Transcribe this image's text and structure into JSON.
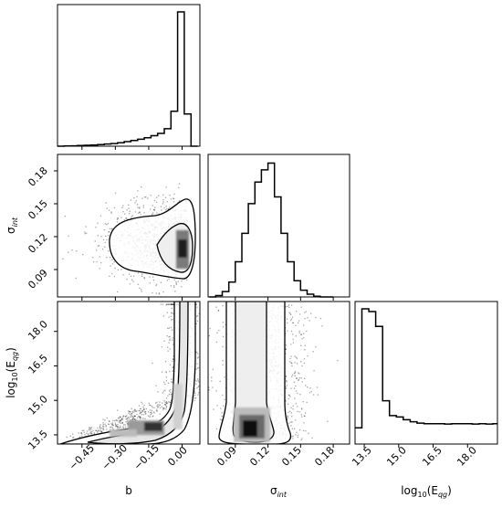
{
  "chart_data": {
    "type": "corner",
    "parameters": [
      {
        "name": "b",
        "label": "b",
        "range": [
          -0.56,
          0.08
        ],
        "ticks": [
          -0.45,
          -0.3,
          -0.15,
          0.0
        ],
        "tick_labels": [
          "−0.45",
          "−0.30",
          "−0.15",
          "0.00"
        ]
      },
      {
        "name": "sigma_int",
        "label_main": "σ",
        "label_sub": "int",
        "range": [
          0.065,
          0.195
        ],
        "ticks": [
          0.09,
          0.12,
          0.15,
          0.18
        ],
        "tick_labels": [
          "0.09",
          "0.12",
          "0.15",
          "0.18"
        ]
      },
      {
        "name": "log10_Eqg",
        "label_main": "log",
        "label_sub": "10",
        "label_tail": "(E",
        "label_sub2": "qg",
        "label_end": ")",
        "range": [
          13.1,
          19.3
        ],
        "ticks": [
          13.5,
          15.0,
          16.5,
          18.0
        ],
        "tick_labels": [
          "13.5",
          "15.0",
          "16.5",
          "18.0"
        ]
      }
    ],
    "histograms": [
      {
        "param": "b",
        "edges": [
          -0.56,
          -0.53,
          -0.5,
          -0.47,
          -0.44,
          -0.41,
          -0.38,
          -0.35,
          -0.32,
          -0.29,
          -0.26,
          -0.23,
          -0.2,
          -0.17,
          -0.14,
          -0.11,
          -0.08,
          -0.05,
          -0.02,
          0.01,
          0.04,
          0.07
        ],
        "counts": [
          0.0,
          0.002,
          0.003,
          0.005,
          0.007,
          0.009,
          0.012,
          0.016,
          0.02,
          0.026,
          0.034,
          0.043,
          0.052,
          0.063,
          0.078,
          0.095,
          0.13,
          0.26,
          1.0,
          0.24,
          0.0
        ]
      },
      {
        "param": "sigma_int",
        "edges": [
          0.066,
          0.072,
          0.078,
          0.084,
          0.09,
          0.096,
          0.102,
          0.108,
          0.114,
          0.12,
          0.126,
          0.132,
          0.138,
          0.144,
          0.15,
          0.156,
          0.162,
          0.168,
          0.174,
          0.18
        ],
        "counts": [
          0.0,
          0.01,
          0.04,
          0.11,
          0.26,
          0.47,
          0.69,
          0.85,
          0.94,
          0.99,
          0.74,
          0.47,
          0.26,
          0.12,
          0.05,
          0.02,
          0.005,
          0.0,
          0.0
        ]
      },
      {
        "param": "log10_Eqg",
        "edges": [
          13.1,
          13.4,
          13.7,
          14.0,
          14.3,
          14.6,
          14.9,
          15.2,
          15.5,
          15.8,
          16.1,
          16.4,
          16.7,
          17.0,
          17.3,
          17.6,
          17.9,
          18.2,
          18.5,
          18.8,
          19.1,
          19.3
        ],
        "counts": [
          0.12,
          1.0,
          0.98,
          0.87,
          0.32,
          0.21,
          0.2,
          0.18,
          0.165,
          0.155,
          0.15,
          0.15,
          0.15,
          0.148,
          0.15,
          0.15,
          0.15,
          0.148,
          0.15,
          0.148,
          0.15
        ]
      }
    ],
    "panels": [
      {
        "row": 0,
        "col": 0,
        "kind": "histogram"
      },
      {
        "row": 1,
        "col": 0,
        "kind": "2d",
        "x": "b",
        "y": "sigma_int"
      },
      {
        "row": 1,
        "col": 1,
        "kind": "histogram"
      },
      {
        "row": 2,
        "col": 0,
        "kind": "2d",
        "x": "b",
        "y": "log10_Eqg"
      },
      {
        "row": 2,
        "col": 1,
        "kind": "2d",
        "x": "sigma_int",
        "y": "log10_Eqg"
      },
      {
        "row": 2,
        "col": 2,
        "kind": "histogram"
      }
    ],
    "colors": {
      "contour": "#000000",
      "points": "#000000",
      "background": "#ffffff"
    }
  }
}
